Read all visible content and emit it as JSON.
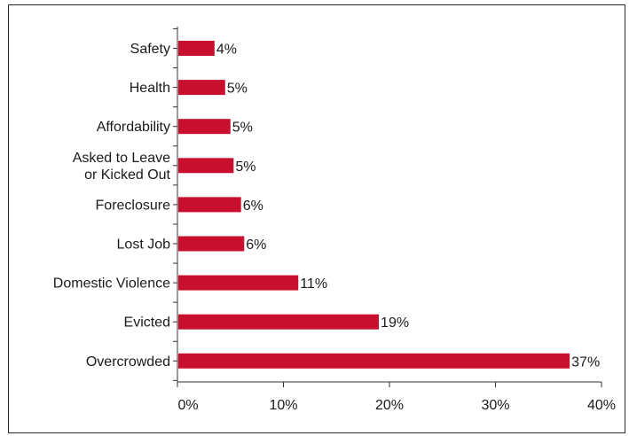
{
  "chart_data": {
    "type": "bar",
    "orientation": "horizontal",
    "categories": [
      [
        "Safety"
      ],
      [
        "Health"
      ],
      [
        "Affordability"
      ],
      [
        "Asked to Leave",
        "or Kicked Out"
      ],
      [
        "Foreclosure"
      ],
      [
        "Lost Job"
      ],
      [
        "Domestic Violence"
      ],
      [
        "Evicted"
      ],
      [
        "Overcrowded"
      ]
    ],
    "values": [
      3.5,
      4.5,
      5,
      5.3,
      6,
      6.3,
      11.4,
      19,
      37
    ],
    "value_labels": [
      "4%",
      "5%",
      "5%",
      "5%",
      "6%",
      "6%",
      "11%",
      "19%",
      "37%"
    ],
    "xlim": [
      0,
      40
    ],
    "xticks": [
      0,
      10,
      20,
      30,
      40
    ],
    "xtick_labels": [
      "0%",
      "10%",
      "20%",
      "30%",
      "40%"
    ],
    "title": "",
    "xlabel": "",
    "ylabel": "",
    "grid": false,
    "bar_color": "#c8102e"
  }
}
